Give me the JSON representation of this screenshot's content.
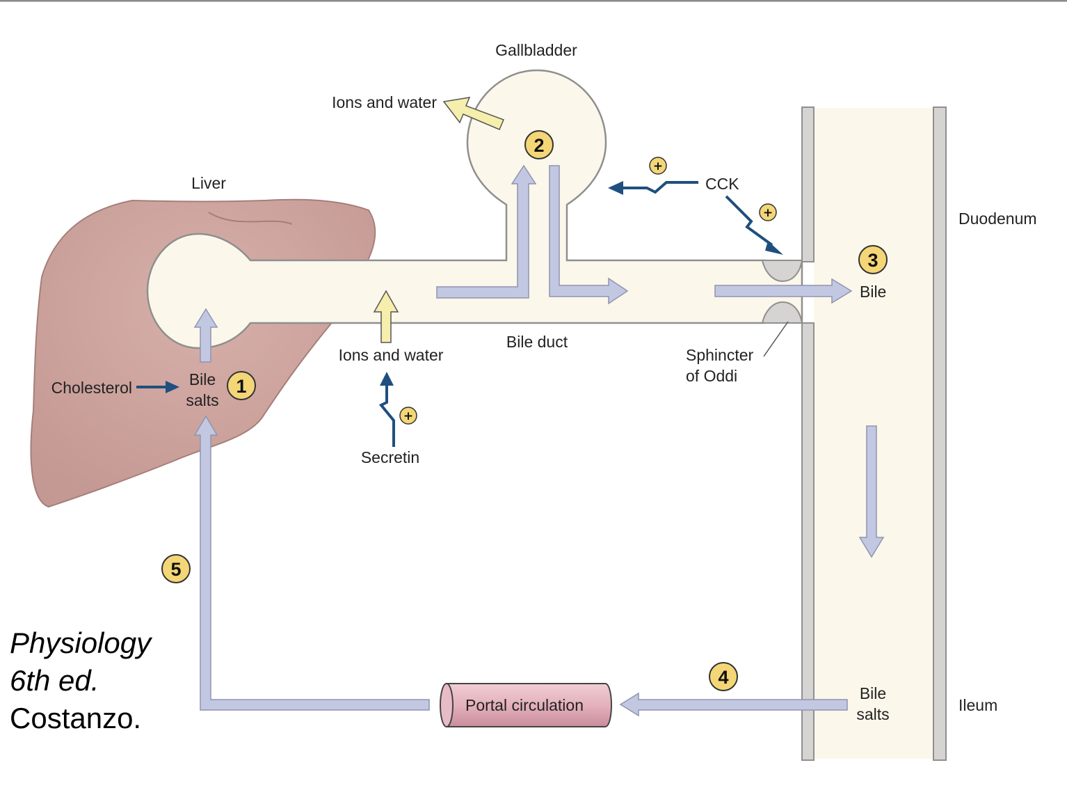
{
  "labels": {
    "gallbladder": "Gallbladder",
    "ions_water_top": "Ions and water",
    "liver": "Liver",
    "cck": "CCK",
    "duodenum": "Duodenum",
    "bile_out": "Bile",
    "bile_salts_liver_1": "Bile",
    "bile_salts_liver_2": "salts",
    "cholesterol": "Cholesterol",
    "ions_water_duct": "Ions and water",
    "bile_duct": "Bile duct",
    "sphincter_1": "Sphincter",
    "sphincter_2": "of Oddi",
    "secretin": "Secretin",
    "portal_circulation": "Portal circulation",
    "bile_salts_ileum_1": "Bile",
    "bile_salts_ileum_2": "salts",
    "ileum": "Ileum"
  },
  "steps": [
    "1",
    "2",
    "3",
    "4",
    "5"
  ],
  "stimulus_sign": "+",
  "citation": {
    "line1": "Physiology",
    "line2": "6th ed.",
    "line3": "Costanzo."
  },
  "colors": {
    "liver_fill": "#c99d98",
    "bile_fill": "#fbf7ea",
    "flow_arrow": "#c3c8e2",
    "ions_arrow": "#f5eeac",
    "hormone_arrow": "#1f4f7e",
    "step_badge": "#f4d677",
    "wall_gray": "#d6d4d2",
    "portal_fill": "#e4b1bc"
  }
}
